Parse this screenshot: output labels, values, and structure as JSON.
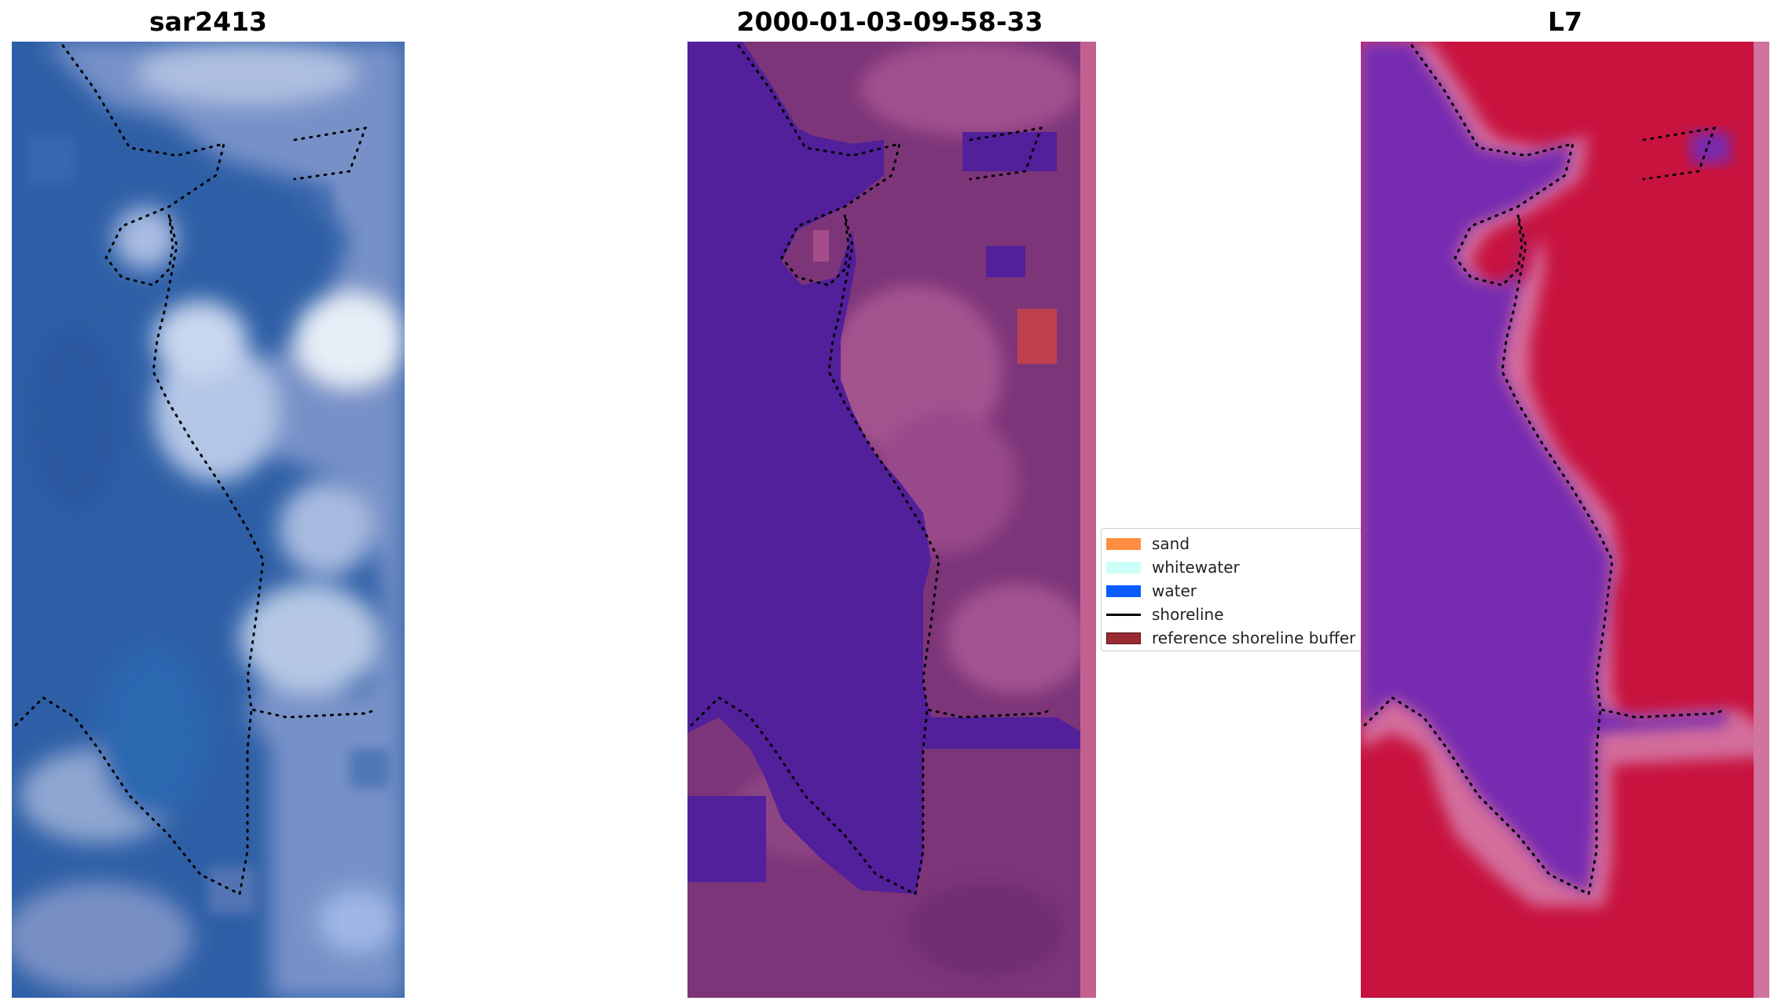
{
  "panels": [
    {
      "title": "sar2413"
    },
    {
      "title": "2000-01-03-09-58-33"
    },
    {
      "title": "L7"
    }
  ],
  "legend": {
    "items": [
      {
        "label": "sand",
        "color": "#ff8c3f"
      },
      {
        "label": "whitewater",
        "color": "#ccfff7"
      },
      {
        "label": "water",
        "color": "#0a5cff"
      },
      {
        "label": "shoreline",
        "color": "#000000"
      },
      {
        "label": "reference shoreline buffer",
        "color": "#9b2a33"
      }
    ]
  },
  "colors": {
    "rgb_water": "#2d5ea8",
    "rgb_land": "#8fa6d6",
    "classified_water": "#51209a",
    "classified_land": "#7c3478",
    "classified_strip": "#c4608f",
    "ndwi_water": "#7a2ab2",
    "ndwi_land": "#c8123e",
    "ndwi_edge": "#d7709c"
  }
}
